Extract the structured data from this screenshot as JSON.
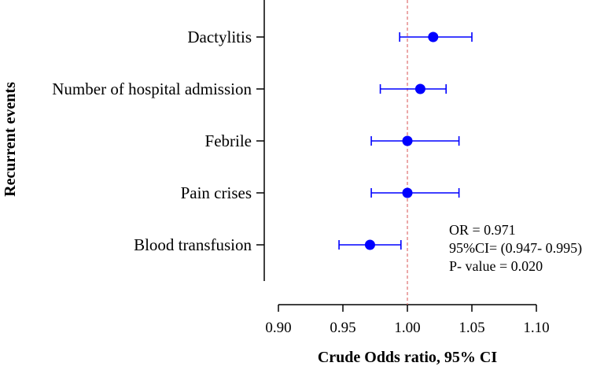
{
  "chart_data": {
    "type": "forest",
    "title": "",
    "xlabel": "Crude Odds ratio, 95% CI",
    "ylabel": "Recurrent events",
    "xlim": [
      0.9,
      1.1
    ],
    "xticks": [
      "0.90",
      "0.95",
      "1.00",
      "1.05",
      "1.10"
    ],
    "reference_line": 1.0,
    "point_color": "#0000ff",
    "reference_color": "#e07070",
    "series": [
      {
        "name": "Dactylitis",
        "or": 1.02,
        "lower": 0.994,
        "upper": 1.05
      },
      {
        "name": "Number of hospital admission",
        "or": 1.01,
        "lower": 0.979,
        "upper": 1.03
      },
      {
        "name": "Febrile",
        "or": 1.0,
        "lower": 0.972,
        "upper": 1.04
      },
      {
        "name": "Pain crises",
        "or": 1.0,
        "lower": 0.972,
        "upper": 1.04
      },
      {
        "name": "Blood transfusion",
        "or": 0.971,
        "lower": 0.947,
        "upper": 0.995
      }
    ],
    "annotations": [
      "OR = 0.971",
      "95%CI= (0.947- 0.995)",
      "P- value = 0.020"
    ]
  }
}
